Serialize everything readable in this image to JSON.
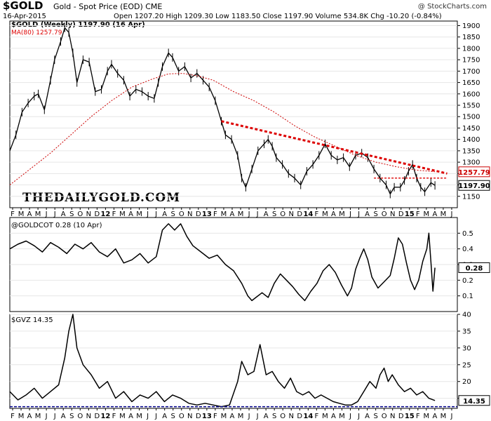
{
  "header": {
    "symbol": "$GOLD",
    "subtitle": "Gold - Spot Price (EOD)  CME",
    "date": "16-Apr-2015",
    "ohlc": "Open 1207.20  High 1209.30  Low 1183.50  Close 1197.90  Volume 534.8K  Chg -10.20 (-0.84%)",
    "credit": "@ StockCharts.com",
    "watermark": "THEDAILYGOLD.COM"
  },
  "colors": {
    "price": "#000000",
    "ma": "#cc0000",
    "trend": "#dd0000",
    "zero_line": "#00008b"
  },
  "chart_data": [
    {
      "type": "line",
      "title": "$GOLD (Weekly) 1197.90 (16 Apr)",
      "ma_label": "MA(80) 1257.79",
      "last_label": "1197.90",
      "ma_last_label": "1257.79",
      "ylim": [
        1100,
        1920
      ],
      "yticks": [
        1150,
        1200,
        1250,
        1300,
        1350,
        1400,
        1450,
        1500,
        1550,
        1600,
        1650,
        1700,
        1750,
        1800,
        1850,
        1900
      ],
      "price": [
        [
          0,
          1350
        ],
        [
          3,
          1420
        ],
        [
          6,
          1520
        ],
        [
          9,
          1560
        ],
        [
          12,
          1590
        ],
        [
          14,
          1600
        ],
        [
          17,
          1530
        ],
        [
          20,
          1660
        ],
        [
          22,
          1750
        ],
        [
          25,
          1830
        ],
        [
          27,
          1890
        ],
        [
          29,
          1870
        ],
        [
          31,
          1780
        ],
        [
          33,
          1650
        ],
        [
          36,
          1750
        ],
        [
          39,
          1740
        ],
        [
          42,
          1610
        ],
        [
          45,
          1620
        ],
        [
          48,
          1700
        ],
        [
          50,
          1730
        ],
        [
          53,
          1690
        ],
        [
          56,
          1660
        ],
        [
          59,
          1590
        ],
        [
          62,
          1620
        ],
        [
          65,
          1610
        ],
        [
          68,
          1590
        ],
        [
          71,
          1580
        ],
        [
          73,
          1650
        ],
        [
          75,
          1720
        ],
        [
          78,
          1780
        ],
        [
          80,
          1760
        ],
        [
          83,
          1700
        ],
        [
          86,
          1720
        ],
        [
          89,
          1670
        ],
        [
          92,
          1690
        ],
        [
          95,
          1660
        ],
        [
          98,
          1630
        ],
        [
          101,
          1570
        ],
        [
          104,
          1480
        ],
        [
          106,
          1420
        ],
        [
          109,
          1400
        ],
        [
          112,
          1330
        ],
        [
          114,
          1230
        ],
        [
          116,
          1190
        ],
        [
          119,
          1270
        ],
        [
          122,
          1350
        ],
        [
          125,
          1380
        ],
        [
          127,
          1400
        ],
        [
          129,
          1370
        ],
        [
          131,
          1320
        ],
        [
          134,
          1290
        ],
        [
          137,
          1250
        ],
        [
          140,
          1230
        ],
        [
          143,
          1200
        ],
        [
          146,
          1260
        ],
        [
          149,
          1290
        ],
        [
          152,
          1330
        ],
        [
          155,
          1380
        ],
        [
          158,
          1330
        ],
        [
          161,
          1310
        ],
        [
          164,
          1320
        ],
        [
          167,
          1280
        ],
        [
          170,
          1330
        ],
        [
          173,
          1340
        ],
        [
          176,
          1320
        ],
        [
          179,
          1270
        ],
        [
          182,
          1230
        ],
        [
          185,
          1200
        ],
        [
          187,
          1160
        ],
        [
          189,
          1190
        ],
        [
          192,
          1190
        ],
        [
          194,
          1220
        ],
        [
          196,
          1260
        ],
        [
          198,
          1290
        ],
        [
          200,
          1230
        ],
        [
          202,
          1190
        ],
        [
          204,
          1170
        ],
        [
          207,
          1210
        ],
        [
          209,
          1197.9
        ]
      ],
      "ma80": [
        [
          0,
          1200
        ],
        [
          10,
          1270
        ],
        [
          20,
          1340
        ],
        [
          30,
          1420
        ],
        [
          40,
          1500
        ],
        [
          50,
          1570
        ],
        [
          60,
          1630
        ],
        [
          70,
          1665
        ],
        [
          78,
          1688
        ],
        [
          85,
          1690
        ],
        [
          92,
          1680
        ],
        [
          100,
          1660
        ],
        [
          110,
          1610
        ],
        [
          120,
          1570
        ],
        [
          130,
          1520
        ],
        [
          140,
          1460
        ],
        [
          150,
          1410
        ],
        [
          160,
          1370
        ],
        [
          170,
          1330
        ],
        [
          180,
          1300
        ],
        [
          190,
          1280
        ],
        [
          200,
          1265
        ],
        [
          209,
          1257.79
        ]
      ],
      "trendline": [
        [
          104,
          1480
        ],
        [
          215,
          1250
        ]
      ],
      "support_line": [
        [
          179,
          1230
        ],
        [
          215,
          1230
        ]
      ]
    },
    {
      "type": "line",
      "title": "@GOLDCOT 0.28 (10 Apr)",
      "last_label": "0.28",
      "ylim": [
        0.0,
        0.6
      ],
      "yticks": [
        0.1,
        0.2,
        0.3,
        0.4,
        0.5
      ],
      "values": [
        [
          0,
          0.4
        ],
        [
          4,
          0.43
        ],
        [
          8,
          0.45
        ],
        [
          12,
          0.42
        ],
        [
          16,
          0.38
        ],
        [
          20,
          0.44
        ],
        [
          24,
          0.41
        ],
        [
          28,
          0.37
        ],
        [
          32,
          0.43
        ],
        [
          36,
          0.4
        ],
        [
          40,
          0.44
        ],
        [
          44,
          0.38
        ],
        [
          48,
          0.35
        ],
        [
          52,
          0.4
        ],
        [
          56,
          0.31
        ],
        [
          60,
          0.33
        ],
        [
          64,
          0.37
        ],
        [
          68,
          0.31
        ],
        [
          72,
          0.35
        ],
        [
          75,
          0.52
        ],
        [
          78,
          0.56
        ],
        [
          81,
          0.52
        ],
        [
          84,
          0.56
        ],
        [
          87,
          0.48
        ],
        [
          90,
          0.42
        ],
        [
          94,
          0.38
        ],
        [
          98,
          0.34
        ],
        [
          102,
          0.36
        ],
        [
          106,
          0.3
        ],
        [
          110,
          0.26
        ],
        [
          114,
          0.18
        ],
        [
          117,
          0.1
        ],
        [
          119,
          0.07
        ],
        [
          121,
          0.09
        ],
        [
          124,
          0.12
        ],
        [
          127,
          0.09
        ],
        [
          130,
          0.18
        ],
        [
          133,
          0.24
        ],
        [
          136,
          0.2
        ],
        [
          139,
          0.16
        ],
        [
          142,
          0.11
        ],
        [
          145,
          0.07
        ],
        [
          148,
          0.13
        ],
        [
          151,
          0.18
        ],
        [
          154,
          0.26
        ],
        [
          157,
          0.3
        ],
        [
          160,
          0.25
        ],
        [
          163,
          0.17
        ],
        [
          166,
          0.1
        ],
        [
          168,
          0.15
        ],
        [
          170,
          0.27
        ],
        [
          172,
          0.34
        ],
        [
          174,
          0.4
        ],
        [
          176,
          0.33
        ],
        [
          178,
          0.22
        ],
        [
          181,
          0.15
        ],
        [
          184,
          0.19
        ],
        [
          187,
          0.23
        ],
        [
          189,
          0.34
        ],
        [
          191,
          0.47
        ],
        [
          193,
          0.43
        ],
        [
          195,
          0.31
        ],
        [
          197,
          0.2
        ],
        [
          199,
          0.14
        ],
        [
          201,
          0.2
        ],
        [
          203,
          0.32
        ],
        [
          205,
          0.4
        ],
        [
          206,
          0.5
        ],
        [
          207,
          0.32
        ],
        [
          208,
          0.13
        ],
        [
          209,
          0.28
        ]
      ]
    },
    {
      "type": "line",
      "title": "$GVZ 14.35",
      "last_label": "14.35",
      "ylim": [
        12,
        40
      ],
      "yticks": [
        15,
        20,
        25,
        30,
        35,
        40
      ],
      "values": [
        [
          0,
          17
        ],
        [
          4,
          14.5
        ],
        [
          8,
          16
        ],
        [
          12,
          18
        ],
        [
          16,
          15
        ],
        [
          20,
          17
        ],
        [
          24,
          19
        ],
        [
          27,
          27
        ],
        [
          29,
          35
        ],
        [
          31,
          40
        ],
        [
          33,
          30
        ],
        [
          36,
          25
        ],
        [
          40,
          22
        ],
        [
          44,
          18
        ],
        [
          48,
          20
        ],
        [
          52,
          15
        ],
        [
          56,
          17
        ],
        [
          60,
          14
        ],
        [
          64,
          16
        ],
        [
          68,
          15
        ],
        [
          72,
          17
        ],
        [
          76,
          14
        ],
        [
          80,
          16
        ],
        [
          84,
          15
        ],
        [
          88,
          13.5
        ],
        [
          92,
          13
        ],
        [
          96,
          13.5
        ],
        [
          100,
          13
        ],
        [
          104,
          12.5
        ],
        [
          108,
          13
        ],
        [
          112,
          20
        ],
        [
          114,
          26
        ],
        [
          117,
          22
        ],
        [
          120,
          23
        ],
        [
          123,
          31
        ],
        [
          126,
          22
        ],
        [
          129,
          23
        ],
        [
          132,
          20
        ],
        [
          135,
          18
        ],
        [
          138,
          21
        ],
        [
          141,
          17
        ],
        [
          144,
          16
        ],
        [
          147,
          17
        ],
        [
          150,
          15
        ],
        [
          153,
          16
        ],
        [
          156,
          15
        ],
        [
          159,
          14
        ],
        [
          162,
          13.5
        ],
        [
          165,
          13
        ],
        [
          168,
          13
        ],
        [
          171,
          14
        ],
        [
          174,
          17
        ],
        [
          177,
          20
        ],
        [
          180,
          18
        ],
        [
          182,
          22
        ],
        [
          184,
          24
        ],
        [
          186,
          20
        ],
        [
          188,
          22
        ],
        [
          191,
          19
        ],
        [
          194,
          17
        ],
        [
          197,
          18
        ],
        [
          200,
          16
        ],
        [
          203,
          17
        ],
        [
          206,
          15
        ],
        [
          209,
          14.35
        ]
      ],
      "zero_line_value": 12.5
    }
  ],
  "x_axis": {
    "labels": [
      "F",
      "M",
      "A",
      "M",
      "J",
      "J",
      "A",
      "S",
      "O",
      "N",
      "D",
      "12",
      "F",
      "M",
      "A",
      "M",
      "J",
      "J",
      "A",
      "S",
      "O",
      "N",
      "D",
      "13",
      "F",
      "M",
      "A",
      "M",
      "J",
      "J",
      "A",
      "S",
      "O",
      "N",
      "D",
      "14",
      "F",
      "M",
      "A",
      "M",
      "J",
      "J",
      "A",
      "S",
      "O",
      "N",
      "D",
      "15",
      "F",
      "M",
      "A",
      "M",
      "J"
    ],
    "year_indices": [
      11,
      23,
      35,
      47
    ]
  }
}
